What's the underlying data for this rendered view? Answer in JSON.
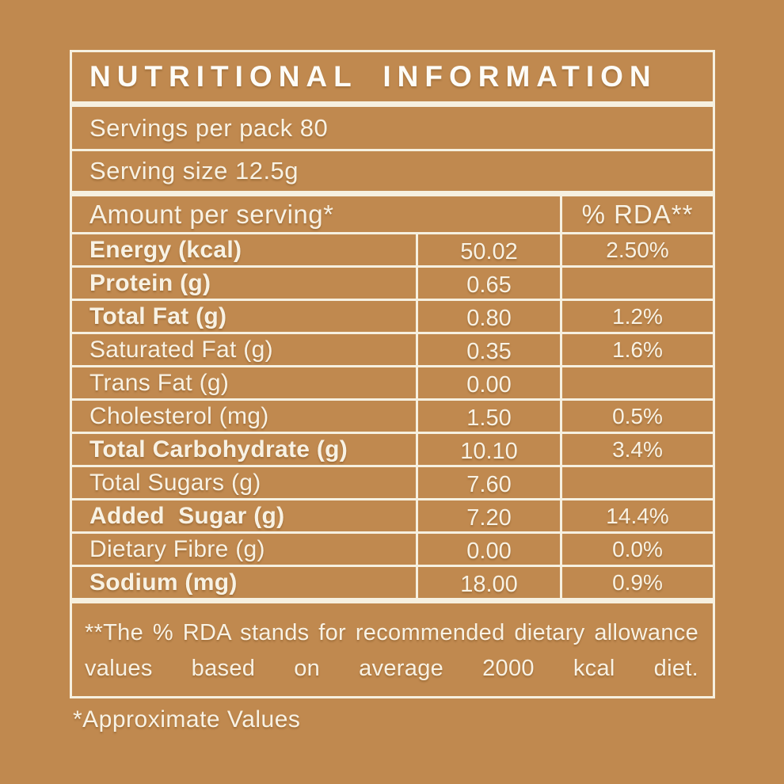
{
  "colors": {
    "background": "#c0894f",
    "text": "#f8f2e4",
    "title_text": "#fdfcf7",
    "border": "#f6f0e0"
  },
  "panel": {
    "title": "NUTRITIONAL INFORMATION",
    "servings_per_pack": "Servings per pack 80",
    "serving_size": "Serving size 12.5g",
    "header": {
      "amount": "Amount per serving*",
      "rda": "% RDA**"
    },
    "rows": [
      {
        "label": "Energy (kcal)",
        "amount": "50.02",
        "rda": "2.50%"
      },
      {
        "label": "Protein (g)",
        "amount": "0.65",
        "rda": ""
      },
      {
        "label": "Total Fat (g)",
        "amount": "0.80",
        "rda": "1.2%"
      },
      {
        "label": "Saturated Fat (g)",
        "amount": "0.35",
        "rda": "1.6%"
      },
      {
        "label": "Trans Fat (g)",
        "amount": "0.00",
        "rda": ""
      },
      {
        "label": "Cholesterol (mg)",
        "amount": "1.50",
        "rda": "0.5%"
      },
      {
        "label": "Total Carbohydrate (g)",
        "amount": "10.10",
        "rda": "3.4%"
      },
      {
        "label": "Total Sugars (g)",
        "amount": "7.60",
        "rda": ""
      },
      {
        "label": "Added  Sugar (g)",
        "amount": "7.20",
        "rda": "14.4%"
      },
      {
        "label": "Dietary Fibre (g)",
        "amount": "0.00",
        "rda": "0.0%"
      },
      {
        "label": "Sodium (mg)",
        "amount": "18.00",
        "rda": "0.9%"
      }
    ],
    "footnote": "**The % RDA stands for recommended dietary allowance values based on average 2000 kcal diet.",
    "approximate_note": "*Approximate Values"
  }
}
